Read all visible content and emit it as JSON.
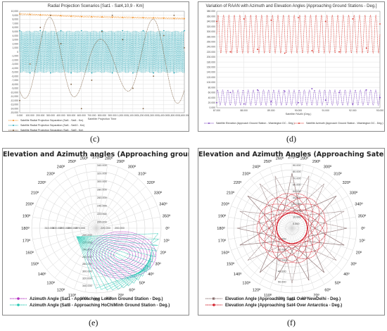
{
  "panels": {
    "c": {
      "caption": "(c)",
      "chart_data": {
        "type": "line",
        "title": "Radial Projection Scenarios [Sat1 - Sat4,10,9 - Km]",
        "xlabel": "Satellite Projection Time",
        "ylabel": "",
        "xlim": [
          0,
          1600
        ],
        "ylim": [
          -15000,
          10000
        ],
        "x_ticks": [
          "0.000",
          "100.000",
          "200.000",
          "300.000",
          "400.000",
          "500.000",
          "600.000",
          "700.000",
          "800.000",
          "900.000",
          "1,000.000",
          "1,100.000",
          "1,200.000",
          "1,300.000",
          "1,400.000",
          "1,500.000",
          "1,600.000"
        ],
        "y_ticks": [
          "10,000",
          "9,000",
          "8,000",
          "7,000",
          "6,000",
          "5,000",
          "4,000",
          "3,000",
          "2,000",
          "1,000",
          "0",
          "-1,000",
          "-2,000",
          "-3,000",
          "-4,000",
          "-5,000",
          "-6,000",
          "-7,000",
          "-8,000",
          "-9,000",
          "-10,000",
          "-11,000",
          "-12,000",
          "-13,000",
          "-14,000",
          "-15,000"
        ],
        "series": [
          {
            "name": "Satellite Radial Projection Separation (Sat1 - Sat4 - Km)",
            "color": "#f08a1c",
            "x": [
              0,
              100,
              200,
              300,
              400,
              500,
              600,
              700,
              800,
              900,
              1000,
              1100,
              1200,
              1300,
              1400,
              1500,
              1600
            ],
            "values": [
              9300,
              9200,
              9100,
              9000,
              8900,
              8800,
              8700,
              8650,
              8600,
              8550,
              8500,
              8450,
              8400,
              8350,
              8300,
              8250,
              8200
            ]
          },
          {
            "name": "Satellite Radial Projection Separation (Sat1 - Sat10 - Km)",
            "color": "#2ba9b8",
            "x": [
              0,
              100,
              200,
              300,
              400,
              500,
              600,
              700,
              800,
              900,
              1000,
              1100,
              1200,
              1300,
              1400,
              1500,
              1600
            ],
            "values": [
              5200,
              -5200,
              5200,
              -5200,
              5200,
              -5200,
              5200,
              -5200,
              5200,
              -5200,
              5200,
              -5200,
              5200,
              -5200,
              5200,
              -5200,
              5200
            ]
          },
          {
            "name": "Satellite Radial Projection Separation (Sat1 - Sat9 - Km)",
            "color": "#7a5a3a",
            "x": [
              0,
              100,
              200,
              300,
              400,
              500,
              600,
              700,
              800,
              900,
              1000,
              1100,
              1200,
              1300,
              1400,
              1500,
              1600
            ],
            "values": [
              -12000,
              -3000,
              6000,
              9000,
              2000,
              -8000,
              -14000,
              -7000,
              5000,
              9000,
              3000,
              -9000,
              -14000,
              -6000,
              4000,
              9000,
              1000
            ]
          }
        ],
        "legend_position": "bottom",
        "grid": true
      }
    },
    "d": {
      "caption": "(d)",
      "chart_data": {
        "type": "line",
        "title": "Variation of RAAN with Azimuth and Elevation Angles [Approaching Ground Stations - Deg.]",
        "xlabel": "Satellite RAAN (Deg.)",
        "ylabel": "",
        "xlim": [
          87,
          93
        ],
        "ylim": [
          0,
          380
        ],
        "x_ticks": [
          "87.000",
          "88.000",
          "89.000",
          "90.000",
          "91.000",
          "92.000",
          "93.000"
        ],
        "y_ticks": [
          "380.000",
          "360.000",
          "340.000",
          "320.000",
          "300.000",
          "280.000",
          "260.000",
          "240.000",
          "220.000",
          "200.000",
          "180.000",
          "160.000",
          "140.000",
          "120.000",
          "100.000",
          "80.000",
          "60.000",
          "40.000",
          "20.000",
          "0.000"
        ],
        "series": [
          {
            "name": "Satellite Elevation (Approach Ground Station - Washington DC - Deg.)",
            "color": "#7a3fbf",
            "x": [
              87.0,
              87.5,
              88.0,
              88.5,
              89.0,
              89.5,
              90.0,
              90.5,
              91.0,
              91.5,
              92.0,
              92.5,
              93.0
            ],
            "values": [
              20,
              60,
              15,
              70,
              25,
              65,
              20,
              75,
              30,
              60,
              15,
              70,
              40
            ]
          },
          {
            "name": "Satellite Azimuth (Approach Ground Station - Washington DC - Deg.)",
            "color": "#d9342b",
            "x": [
              87.0,
              87.5,
              88.0,
              88.5,
              89.0,
              89.5,
              90.0,
              90.5,
              91.0,
              91.5,
              92.0,
              92.5,
              93.0
            ],
            "values": [
              340,
              220,
              350,
              230,
              345,
              215,
              355,
              225,
              340,
              220,
              350,
              235,
              330
            ]
          }
        ],
        "legend_position": "bottom",
        "grid": true
      }
    },
    "e": {
      "caption": "(e)",
      "chart_data": {
        "type": "polar",
        "title": "Elevation and Azimuth angles (Approaching ground stations - Deg.)",
        "angle_labels": [
          "270º",
          "280º",
          "290º",
          "300º",
          "310º",
          "320º",
          "330º",
          "340º",
          "350º",
          "0º",
          "10º",
          "20º",
          "30º",
          "40º",
          "50º",
          "60º",
          "70º",
          "80º",
          "90º",
          "100º",
          "110º",
          "120º",
          "130º",
          "140º",
          "150º",
          "160º",
          "170º",
          "180º",
          "190º",
          "200º",
          "210º",
          "220º",
          "230º",
          "240º",
          "250º",
          "260º"
        ],
        "radial_ticks": [
          "340.000",
          "320.000",
          "300.000",
          "280.000",
          "260.000",
          "240.000",
          "220.000",
          "200.000"
        ],
        "radial_ticks_left": [
          "310.000",
          "300.000",
          "290.000",
          "280.000",
          "270.000"
        ],
        "radial_ticks_right": [
          "220.000",
          "200.000"
        ],
        "radial_ticks_lower": [
          "200.000",
          "220.000",
          "240.000",
          "260.000",
          "280.000",
          "300.000",
          "320.000",
          "340.000"
        ],
        "series": [
          {
            "name": "Azimuth Angle (Sat1 - Approaching London Ground Station - Deg.)",
            "color": "#b22fc0",
            "marker": "circle"
          },
          {
            "name": "Azimuth Angle (Sat8 - Approaching HoChiMinh Ground Station - Deg.)",
            "color": "#22c7b2",
            "marker": "star"
          }
        ],
        "legend_position": "bottom",
        "grid": true
      }
    },
    "f": {
      "caption": "(f)",
      "chart_data": {
        "type": "polar",
        "title": "Elevation and Azimuth Angles (Approaching Satellites - Deg.)",
        "angle_labels": [
          "270º",
          "280º",
          "290º",
          "300º",
          "310º",
          "320º",
          "330º",
          "340º",
          "350º",
          "0º",
          "10º",
          "20º",
          "30º",
          "40º",
          "50º",
          "60º",
          "70º",
          "80º",
          "90º",
          "100º",
          "110º",
          "120º",
          "130º",
          "140º",
          "150º",
          "160º",
          "170º",
          "180º",
          "190º",
          "200º",
          "210º",
          "220º",
          "230º",
          "240º",
          "250º",
          "260º"
        ],
        "radial_ticks": [
          "90.000",
          "80.000",
          "70.000",
          "60.000",
          "50.000",
          "40.000",
          "30.000",
          "20.000",
          "10.000",
          "0.000"
        ],
        "radial_ticks_lower": [
          "10.000",
          "20.000",
          "30.000",
          "40.000",
          "50.000"
        ],
        "series": [
          {
            "name": "Elevation Angle (Approaching Sat1 Over NewDelhi - Deg.)",
            "color": "#8a7070",
            "marker": "square"
          },
          {
            "name": "Elevation Angle (Approaching Sat4 Over Antarctica - Deg.)",
            "color": "#d21e2a",
            "marker": "circle"
          }
        ],
        "legend_position": "bottom",
        "grid": true
      }
    }
  }
}
